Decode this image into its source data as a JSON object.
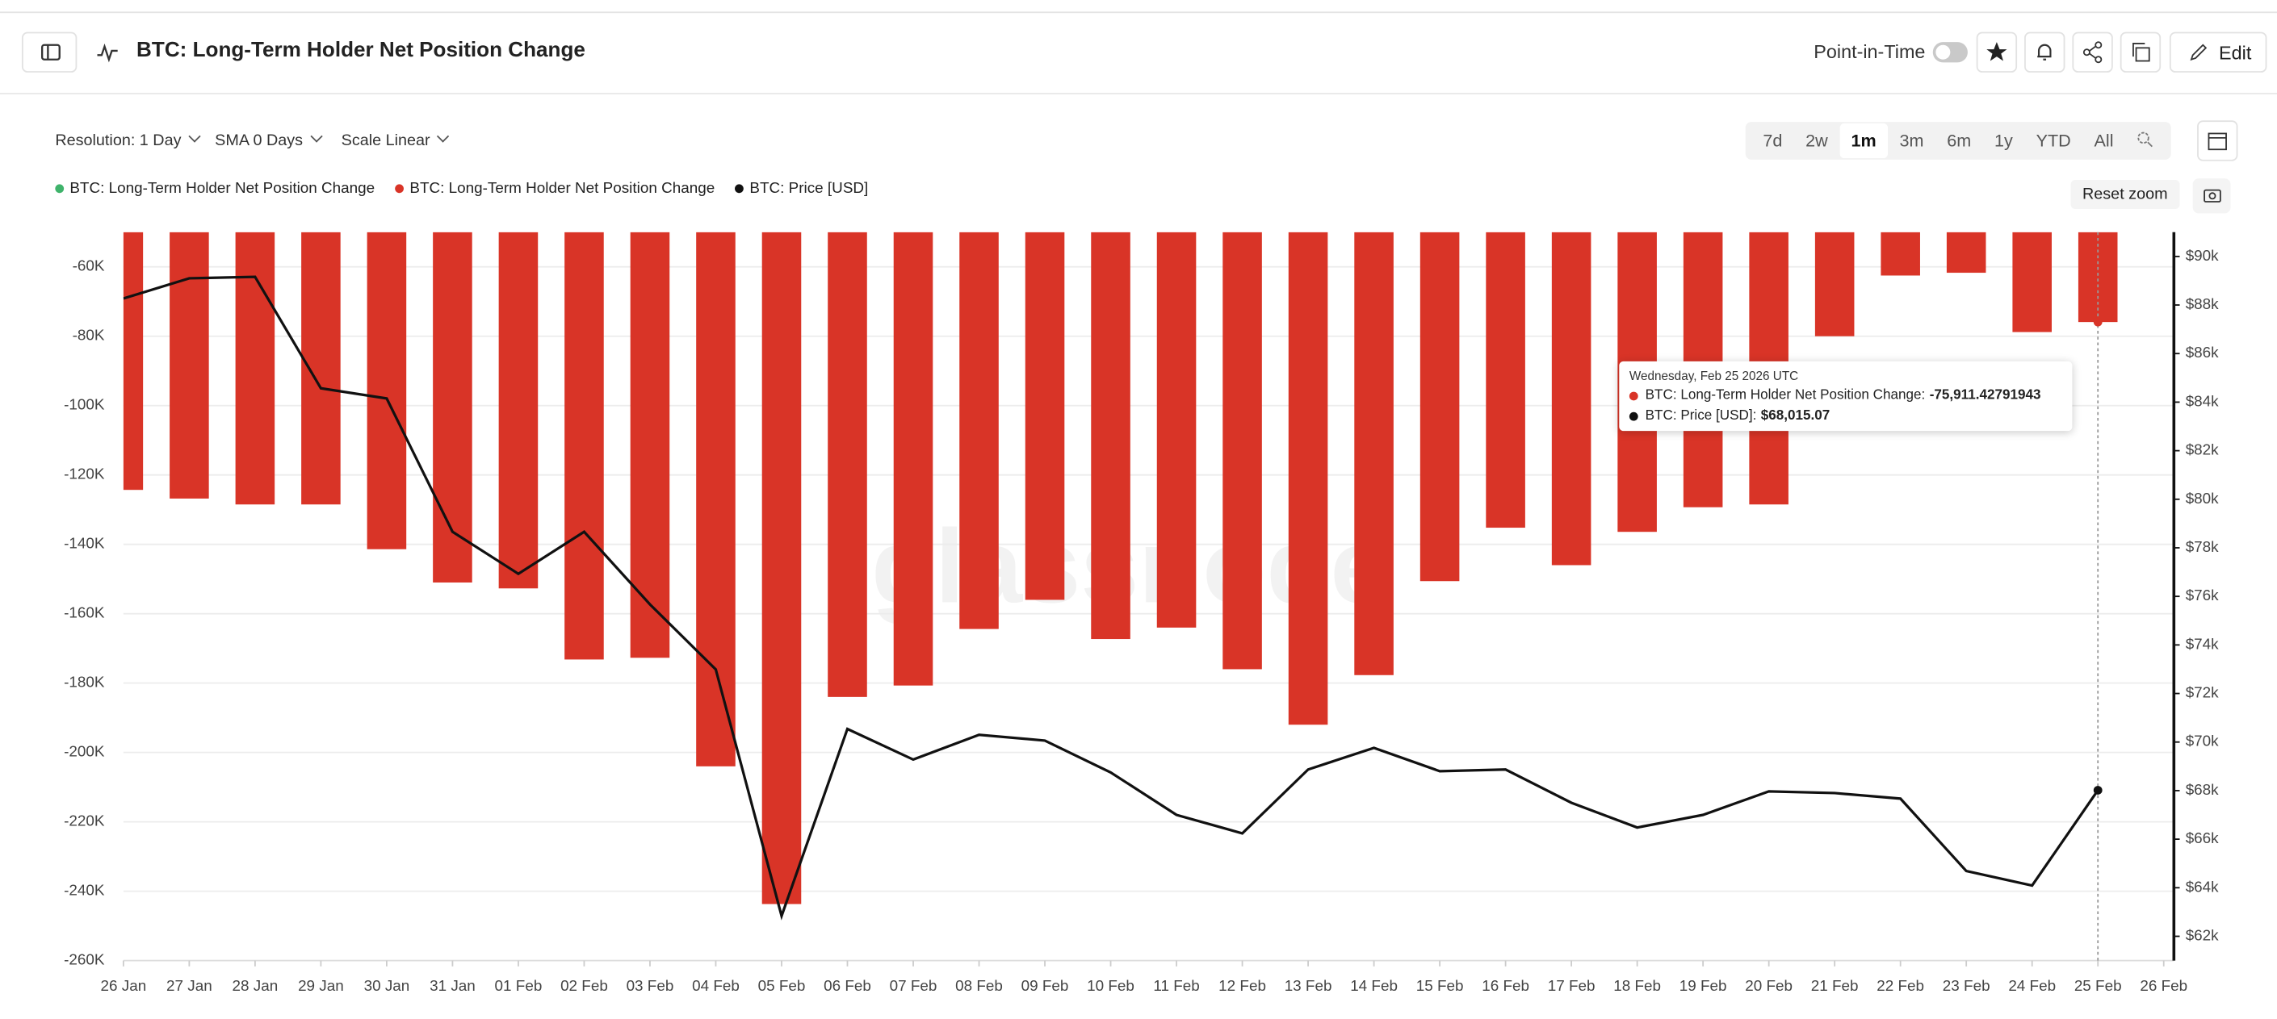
{
  "header": {
    "title": "BTC: Long-Term Holder Net Position Change",
    "point_in_time": "Point-in-Time",
    "edit": "Edit"
  },
  "toolbar": {
    "resolution": "Resolution: 1 Day",
    "sma": "SMA 0 Days",
    "scale": "Scale Linear",
    "ranges": [
      "7d",
      "2w",
      "1m",
      "3m",
      "6m",
      "1y",
      "YTD",
      "All"
    ],
    "active_range": "1m",
    "reset_zoom": "Reset zoom"
  },
  "watermark": "glassnode",
  "tooltip": {
    "date": "Wednesday, Feb 25 2026 UTC",
    "rows": [
      {
        "label": "BTC: Long-Term Holder Net Position Change:",
        "value": "-75,911.42791943",
        "color": "#d93427"
      },
      {
        "label": "BTC: Price [USD]:",
        "value": "$68,015.07",
        "color": "#111111"
      }
    ]
  },
  "chart_data": {
    "type": "bar",
    "grid": true,
    "categories": [
      "26 Jan",
      "27 Jan",
      "28 Jan",
      "29 Jan",
      "30 Jan",
      "31 Jan",
      "01 Feb",
      "02 Feb",
      "03 Feb",
      "04 Feb",
      "05 Feb",
      "06 Feb",
      "07 Feb",
      "08 Feb",
      "09 Feb",
      "10 Feb",
      "11 Feb",
      "12 Feb",
      "13 Feb",
      "14 Feb",
      "15 Feb",
      "16 Feb",
      "17 Feb",
      "18 Feb",
      "19 Feb",
      "20 Feb",
      "21 Feb",
      "22 Feb",
      "23 Feb",
      "24 Feb",
      "25 Feb",
      "26 Feb"
    ],
    "series": [
      {
        "name": "BTC: Long-Term Holder Net Position Change",
        "color": "#3fb36b",
        "values": [
          null,
          null,
          null,
          null,
          null,
          null,
          null,
          null,
          null,
          null,
          null,
          null,
          null,
          null,
          null,
          null,
          null,
          null,
          null,
          null,
          null,
          null,
          null,
          null,
          null,
          null,
          null,
          null,
          null,
          null,
          null,
          null
        ]
      },
      {
        "name": "BTC: Long-Term Holder Net Position Change",
        "color": "#d93427",
        "values": [
          -124300,
          -126800,
          -128500,
          -128500,
          -141400,
          -151000,
          -152700,
          -173200,
          -172700,
          -204000,
          -243700,
          -184000,
          -180700,
          -164400,
          -156000,
          -167300,
          -164000,
          -176000,
          -192000,
          -177700,
          -150600,
          -135200,
          -146000,
          -136400,
          -129300,
          -128500,
          -80000,
          -62500,
          -61700,
          -78800,
          -75911.42791943,
          null
        ]
      },
      {
        "name": "BTC: Price [USD]",
        "color": "#111111",
        "type": "line",
        "axis": "y2",
        "values": [
          88270,
          89100,
          89160,
          84570,
          84150,
          78660,
          76930,
          78660,
          75670,
          72990,
          62840,
          70540,
          69280,
          70300,
          70060,
          68750,
          67000,
          66240,
          68870,
          69760,
          68800,
          68870,
          67500,
          66480,
          67000,
          67970,
          67900,
          67670,
          64690,
          64090,
          68015.07,
          null
        ]
      }
    ],
    "ylim": [
      -260000,
      -50000
    ],
    "yticks": [
      {
        "value": -60000,
        "label": "-60K"
      },
      {
        "value": -80000,
        "label": "-80K"
      },
      {
        "value": -100000,
        "label": "-100K"
      },
      {
        "value": -120000,
        "label": "-120K"
      },
      {
        "value": -140000,
        "label": "-140K"
      },
      {
        "value": -160000,
        "label": "-160K"
      },
      {
        "value": -180000,
        "label": "-180K"
      },
      {
        "value": -200000,
        "label": "-200K"
      },
      {
        "value": -220000,
        "label": "-220K"
      },
      {
        "value": -240000,
        "label": "-240K"
      },
      {
        "value": -260000,
        "label": "-260K"
      }
    ],
    "y2lim": [
      61000,
      91000
    ],
    "y2ticks": [
      {
        "value": 62000,
        "label": "$62k"
      },
      {
        "value": 64000,
        "label": "$64k"
      },
      {
        "value": 66000,
        "label": "$66k"
      },
      {
        "value": 68000,
        "label": "$68k"
      },
      {
        "value": 70000,
        "label": "$70k"
      },
      {
        "value": 72000,
        "label": "$72k"
      },
      {
        "value": 74000,
        "label": "$74k"
      },
      {
        "value": 76000,
        "label": "$76k"
      },
      {
        "value": 78000,
        "label": "$78k"
      },
      {
        "value": 80000,
        "label": "$80k"
      },
      {
        "value": 82000,
        "label": "$82k"
      },
      {
        "value": 84000,
        "label": "$84k"
      },
      {
        "value": 86000,
        "label": "$86k"
      },
      {
        "value": 88000,
        "label": "$88k"
      },
      {
        "value": 90000,
        "label": "$90k"
      }
    ]
  }
}
